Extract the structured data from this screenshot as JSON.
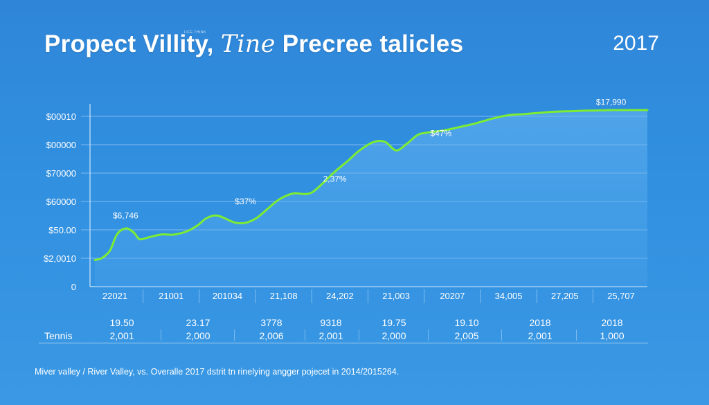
{
  "header": {
    "title_part1": "Propect Villity, ",
    "title_script": "Tine",
    "title_part2": " Precree talicles",
    "tagline": "LIFE THINK",
    "year": "2017"
  },
  "chart_data": {
    "type": "area",
    "y_tick_labels": [
      "0",
      "$2,0010",
      "$50.00",
      "$60000",
      "$70000",
      "$00000",
      "$00010"
    ],
    "x_tick_labels": [
      "22021",
      "21001",
      "201034",
      "21,108",
      "24,202",
      "21,003",
      "20207",
      "34,005",
      "27,205",
      "25,707"
    ],
    "y_levels": [
      0,
      1,
      2,
      3,
      4,
      5,
      6
    ],
    "series": [
      {
        "x": [
          0,
          0.12,
          0.27,
          0.4,
          0.56,
          0.7,
          0.8,
          0.95,
          1.2,
          1.4,
          1.65,
          1.85,
          2.0,
          2.2,
          2.5,
          2.7,
          2.9,
          3.1,
          3.3,
          3.55,
          3.75,
          3.9,
          4.1,
          4.3,
          4.55,
          4.75,
          5.0,
          5.2,
          5.4,
          5.6,
          5.8,
          6.05,
          6.25,
          6.55,
          6.8,
          7.05,
          7.25,
          7.45,
          7.7,
          7.95,
          8.15,
          8.35,
          8.55,
          8.8,
          9.05,
          9.25,
          9.45,
          9.6,
          9.75,
          9.9
        ],
        "y": [
          0.94,
          1.0,
          1.27,
          1.85,
          2.05,
          1.9,
          1.67,
          1.73,
          1.84,
          1.83,
          1.95,
          2.17,
          2.41,
          2.5,
          2.26,
          2.25,
          2.42,
          2.75,
          3.07,
          3.28,
          3.26,
          3.33,
          3.67,
          4.05,
          4.46,
          4.81,
          5.1,
          5.1,
          4.8,
          5.05,
          5.36,
          5.45,
          5.5,
          5.63,
          5.74,
          5.88,
          5.98,
          6.05,
          6.08,
          6.12,
          6.15,
          6.17,
          6.18,
          6.2,
          6.21,
          6.22,
          6.22,
          6.22,
          6.22,
          6.22
        ]
      }
    ],
    "ylim": [
      0,
      6.5
    ],
    "xlim": [
      0,
      9.9
    ],
    "annotations": [
      {
        "label": "$6,746",
        "x": 0.55,
        "y": 2.4
      },
      {
        "label": "$37%",
        "x": 2.7,
        "y": 2.9
      },
      {
        "label": "2,37%",
        "x": 4.3,
        "y": 3.7
      },
      {
        "label": "$47%",
        "x": 6.2,
        "y": 5.3
      },
      {
        "label": "$17,990",
        "x": 9.25,
        "y": 6.4
      }
    ],
    "grid": true,
    "colors": {
      "line": "#7dec33",
      "fill": "#5fb0ee",
      "grid": "#9ccaf2"
    }
  },
  "table": {
    "row1": [
      "19.50",
      "23.17",
      "3778",
      "9318",
      "19.75",
      "19.10",
      "2018",
      "2018"
    ],
    "row2_label": "Tennis",
    "row2": [
      "2,001",
      "2,000",
      "2,006",
      "2,001",
      "2,000",
      "2,005",
      "2,001",
      "1,000"
    ]
  },
  "footnote": "Miver valley / River Valley, vs. Overalle 2017 dstrit tn rinelying angger pojecet in 2014/2015264."
}
